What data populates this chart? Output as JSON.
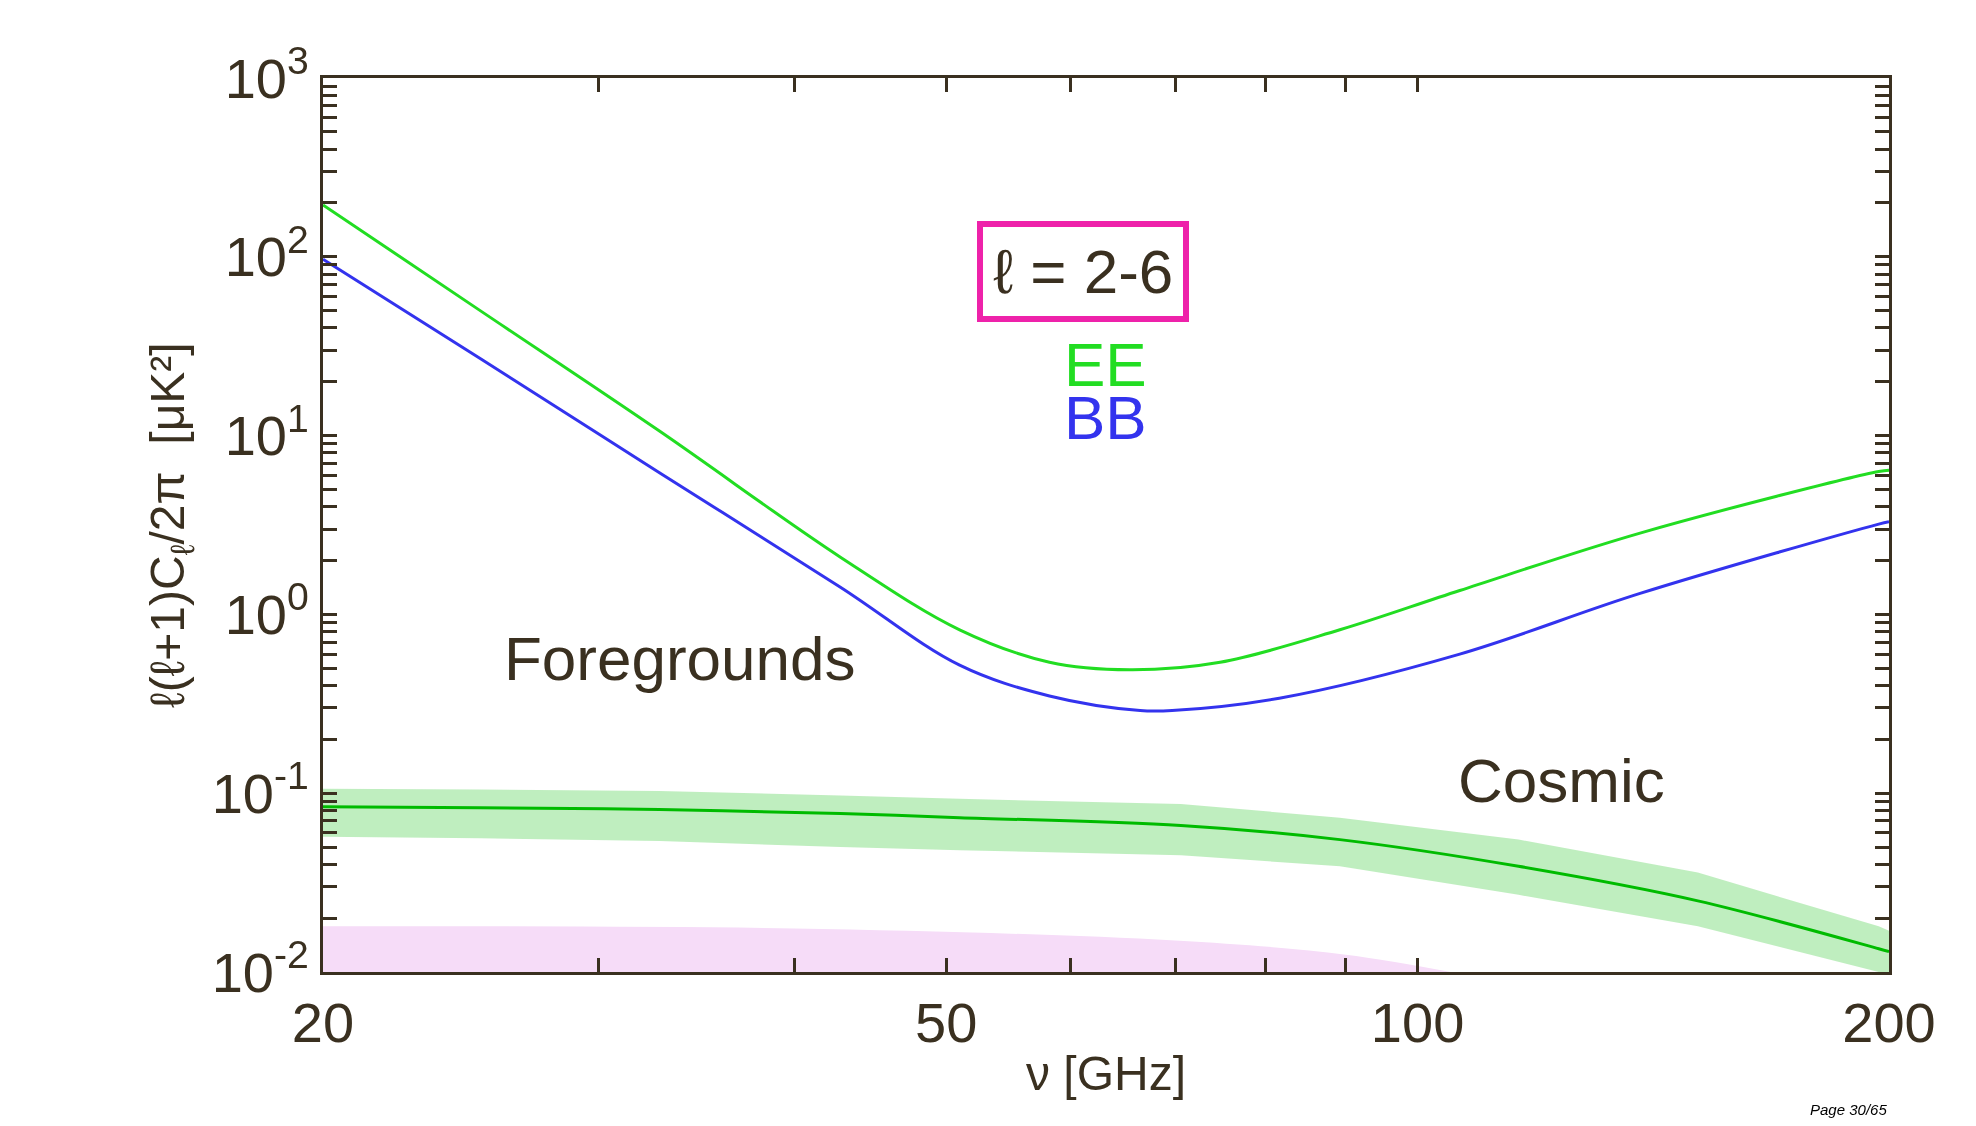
{
  "chart_data": {
    "type": "line",
    "xlabel": "ν [GHz]",
    "ylabel": "ℓ(ℓ+1)C$_{ℓ}$/2π  [μK²]",
    "log": "xy",
    "grid": false,
    "legend": "top",
    "xlim": [
      20,
      200
    ],
    "ylim": [
      0.01,
      1000
    ],
    "xticks": [
      20,
      {
        "value": 30,
        "label": null
      },
      {
        "value": 40,
        "label": null
      },
      50,
      {
        "value": 60,
        "label": null
      },
      {
        "value": 70,
        "label": null
      },
      {
        "value": 80,
        "label": null
      },
      {
        "value": 90,
        "label": null
      },
      100,
      200
    ],
    "yticks": [
      {
        "value": 0.01,
        "label": "10$^{-2}$"
      },
      {
        "value": 0.02,
        "label": null
      },
      {
        "value": 0.03,
        "label": null
      },
      {
        "value": 0.04,
        "label": null
      },
      {
        "value": 0.05,
        "label": null
      },
      {
        "value": 0.06,
        "label": null
      },
      {
        "value": 0.07,
        "label": null
      },
      {
        "value": 0.08,
        "label": null
      },
      {
        "value": 0.09,
        "label": null
      },
      {
        "value": 0.1,
        "label": "10$^{-1}$"
      },
      {
        "value": 0.2,
        "label": null
      },
      {
        "value": 0.3,
        "label": null
      },
      {
        "value": 0.4,
        "label": null
      },
      {
        "value": 0.5,
        "label": null
      },
      {
        "value": 0.6,
        "label": null
      },
      {
        "value": 0.7,
        "label": null
      },
      {
        "value": 0.8,
        "label": null
      },
      {
        "value": 0.9,
        "label": null
      },
      {
        "value": 1,
        "label": "10$^{0}$"
      },
      {
        "value": 2,
        "label": null
      },
      {
        "value": 3,
        "label": null
      },
      {
        "value": 4,
        "label": null
      },
      {
        "value": 5,
        "label": null
      },
      {
        "value": 6,
        "label": null
      },
      {
        "value": 7,
        "label": null
      },
      {
        "value": 8,
        "label": null
      },
      {
        "value": 9,
        "label": null
      },
      {
        "value": 10,
        "label": "10$^{1}$"
      },
      {
        "value": 20,
        "label": null
      },
      {
        "value": 30,
        "label": null
      },
      {
        "value": 40,
        "label": null
      },
      {
        "value": 50,
        "label": null
      },
      {
        "value": 60,
        "label": null
      },
      {
        "value": 70,
        "label": null
      },
      {
        "value": 80,
        "label": null
      },
      {
        "value": 90,
        "label": null
      },
      {
        "value": 100,
        "label": "10$^{2}$"
      },
      {
        "value": 200,
        "label": null
      },
      {
        "value": 300,
        "label": null
      },
      {
        "value": 400,
        "label": null
      },
      {
        "value": 500,
        "label": null
      },
      {
        "value": 600,
        "label": null
      },
      {
        "value": 700,
        "label": null
      },
      {
        "value": 800,
        "label": null
      },
      {
        "value": 900,
        "label": null
      },
      {
        "value": 1000,
        "label": "10$^{3}$"
      }
    ],
    "series": [
      {
        "type": "area",
        "color": "#f6dcf8",
        "x": [
          20,
          40,
          70,
          90,
          105
        ],
        "values": [
          0.018,
          0.0175,
          0.015,
          0.0125,
          0.01
        ]
      },
      {
        "color": "#00bb00",
        "x": [
          20,
          25.2,
          32.8,
          42.8,
          51,
          70.6,
          89.2,
          116,
          151,
          197,
          200
        ],
        "values": [
          0.084,
          0.083,
          0.081,
          0.077,
          0.073,
          0.066,
          0.055,
          0.039,
          0.025,
          0.0135,
          0.013
        ],
        "lower": [
          0.057,
          0.056,
          0.054,
          0.05,
          0.048,
          0.045,
          0.039,
          0.027,
          0.018,
          0.01,
          0.01
        ],
        "upper": [
          0.106,
          0.105,
          0.103,
          0.097,
          0.093,
          0.087,
          0.073,
          0.055,
          0.036,
          0.018,
          0.017
        ]
      },
      {
        "name": "EE",
        "color": "#22dd22",
        "x": [
          20,
          25.2,
          32.8,
          42.8,
          51,
          58.2,
          65.5,
          74.8,
          89.2,
          106.4,
          138.7,
          197,
          200
        ],
        "values": [
          195,
          50,
          10.6,
          2.09,
          0.82,
          0.54,
          0.49,
          0.54,
          0.82,
          1.36,
          2.85,
          6.3,
          6.4
        ]
      },
      {
        "name": "BB",
        "color": "#3333ee",
        "x": [
          20,
          25.2,
          32.8,
          42.8,
          51,
          58.2,
          66.5,
          69.7,
          81.6,
          106.4,
          138.7,
          197,
          200
        ],
        "values": [
          97,
          27,
          6.2,
          1.42,
          0.52,
          0.35,
          0.29,
          0.29,
          0.34,
          0.6,
          1.31,
          3.2,
          3.3
        ]
      }
    ],
    "annotations": [
      "ℓ = 2-6",
      "Foregrounds",
      "Cosmic",
      "Page 30/65"
    ]
  }
}
